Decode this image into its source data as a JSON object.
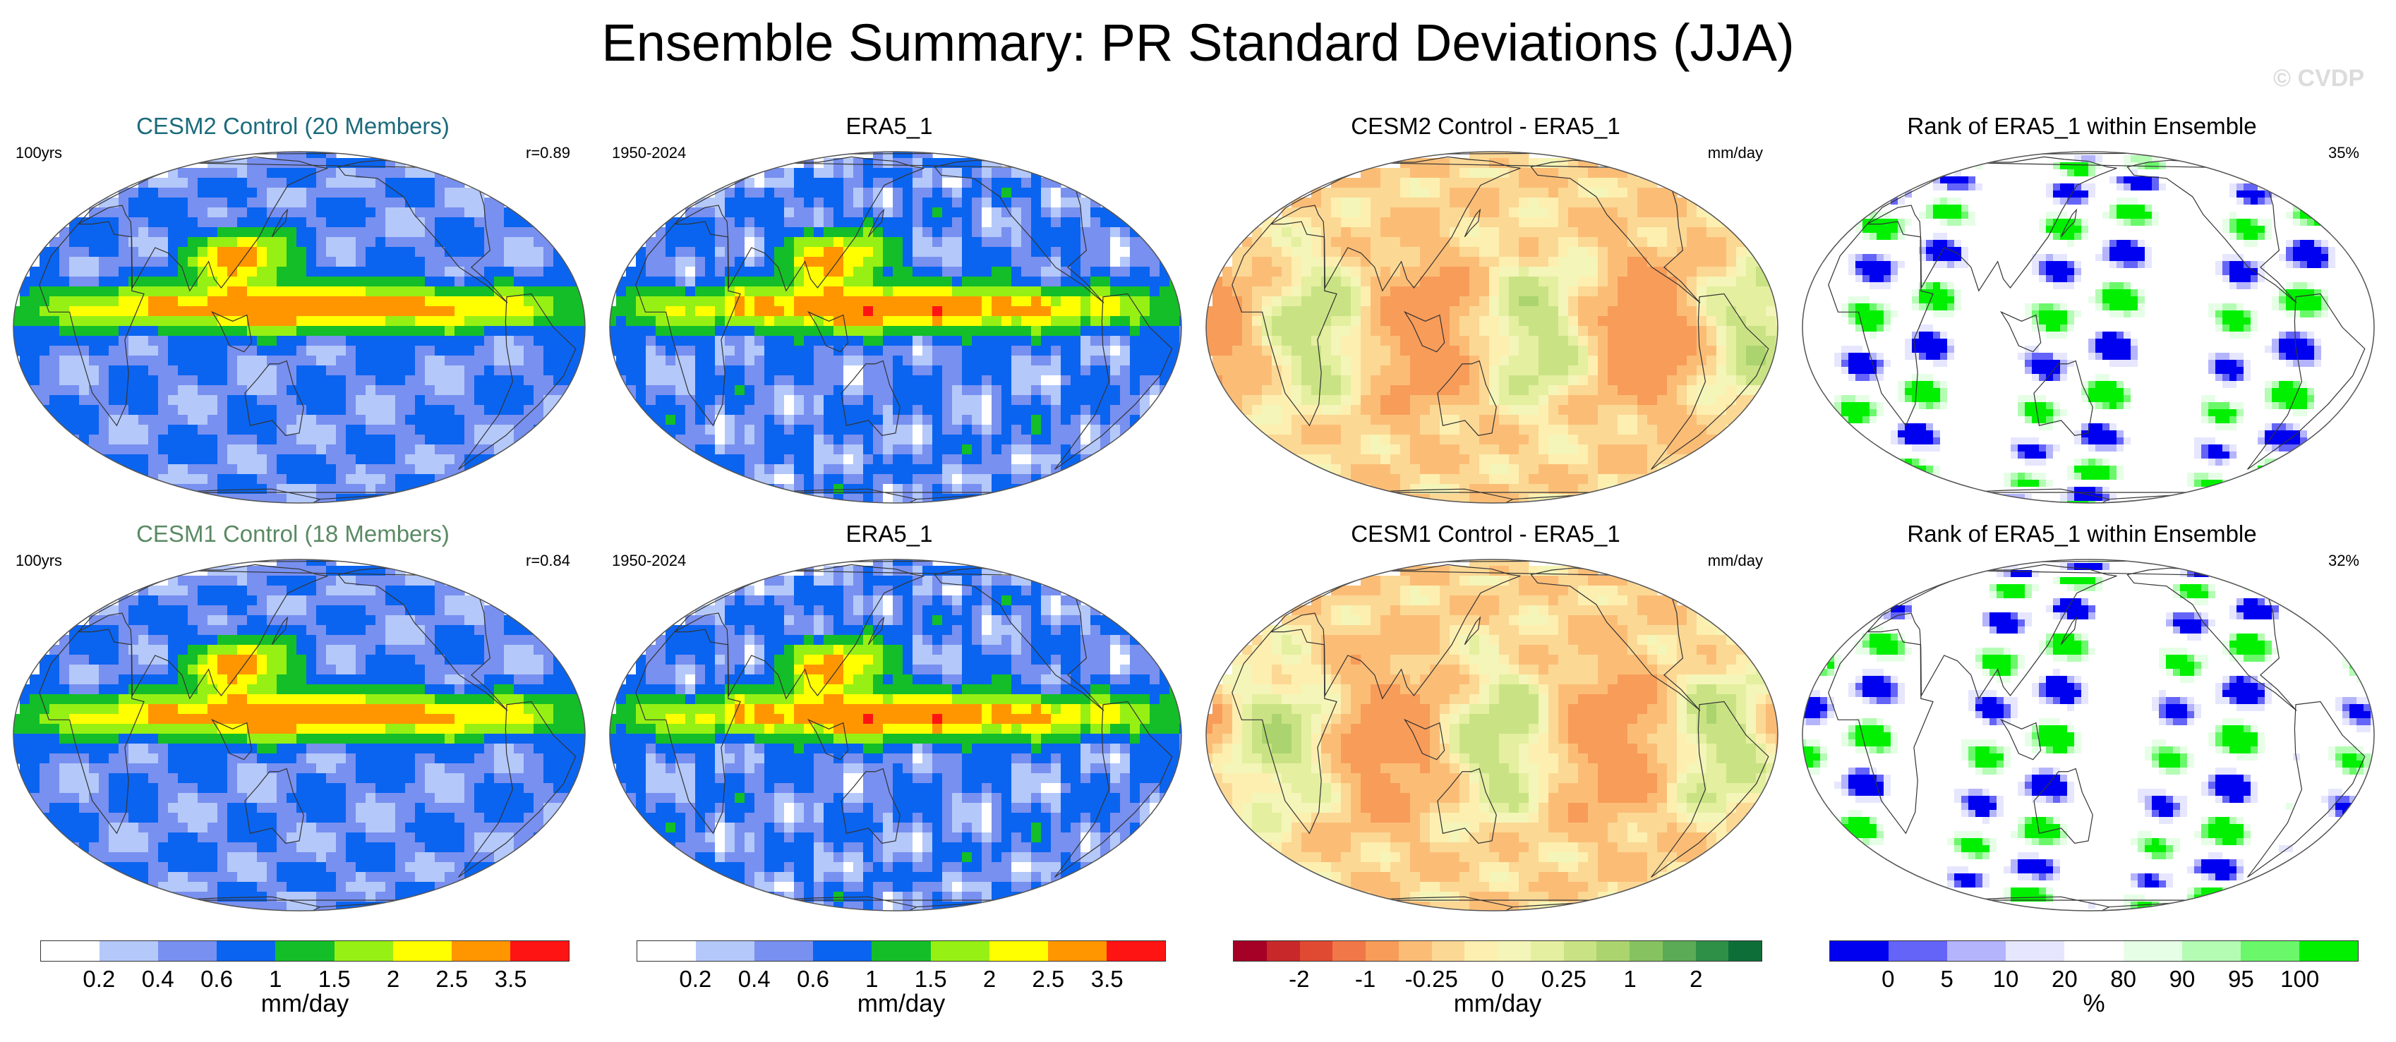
{
  "title": "Ensemble Summary: PR Standard Deviations (JJA)",
  "watermark": "© CVDP",
  "rows": [
    {
      "panels": [
        {
          "title": "CESM2 Control (20 Members)",
          "title_color": "#1b6b7c",
          "left_label": "100yrs",
          "right_label": "r=0.89",
          "kind": "std",
          "variant": "model"
        },
        {
          "title": "ERA5_1",
          "title_color": "#000000",
          "left_label": "1950-2024",
          "right_label": "",
          "kind": "std",
          "variant": "obs"
        },
        {
          "title": "CESM2 Control - ERA5_1",
          "title_color": "#000000",
          "left_label": "",
          "right_label": "mm/day",
          "kind": "diff",
          "variant": "a"
        },
        {
          "title": "Rank of ERA5_1 within Ensemble",
          "title_color": "#000000",
          "left_label": "",
          "right_label": "35%",
          "kind": "rank",
          "variant": "a"
        }
      ]
    },
    {
      "panels": [
        {
          "title": "CESM1 Control (18 Members)",
          "title_color": "#5a8a64",
          "left_label": "100yrs",
          "right_label": "r=0.84",
          "kind": "std",
          "variant": "model"
        },
        {
          "title": "ERA5_1",
          "title_color": "#000000",
          "left_label": "1950-2024",
          "right_label": "",
          "kind": "std",
          "variant": "obs"
        },
        {
          "title": "CESM1 Control - ERA5_1",
          "title_color": "#000000",
          "left_label": "",
          "right_label": "mm/day",
          "kind": "diff",
          "variant": "b"
        },
        {
          "title": "Rank of ERA5_1 within Ensemble",
          "title_color": "#000000",
          "left_label": "",
          "right_label": "32%",
          "kind": "rank",
          "variant": "b"
        }
      ]
    }
  ],
  "colorbars": [
    {
      "unit": "mm/day",
      "colors": [
        "#ffffff",
        "#b4c8fa",
        "#7890f0",
        "#0a64f0",
        "#14be28",
        "#96f014",
        "#ffff00",
        "#ff9600",
        "#ff1414"
      ],
      "ticks": [
        "0.2",
        "0.4",
        "0.6",
        "1",
        "1.5",
        "2",
        "2.5",
        "3.5"
      ]
    },
    {
      "unit": "mm/day",
      "colors": [
        "#ffffff",
        "#b4c8fa",
        "#7890f0",
        "#0a64f0",
        "#14be28",
        "#96f014",
        "#ffff00",
        "#ff9600",
        "#ff1414"
      ],
      "ticks": [
        "0.2",
        "0.4",
        "0.6",
        "1",
        "1.5",
        "2",
        "2.5",
        "3.5"
      ]
    },
    {
      "unit": "mm/day",
      "colors": [
        "#a50026",
        "#c8282a",
        "#e04a33",
        "#f07848",
        "#f89c5a",
        "#fbbd76",
        "#fcd895",
        "#fdefb0",
        "#f4f5b8",
        "#e4efa0",
        "#c9e384",
        "#abd46e",
        "#86c260",
        "#5bab56",
        "#2e8f47",
        "#0e6e38"
      ],
      "ticks": [
        "-2",
        "-1",
        "-0.25",
        "0",
        "0.25",
        "1",
        "2"
      ]
    },
    {
      "unit": "%",
      "colors": [
        "#0000f0",
        "#6464f8",
        "#b4b4fc",
        "#e6e6fe",
        "#ffffff",
        "#e6fee6",
        "#b4fcb4",
        "#6af86a",
        "#00f000"
      ],
      "ticks": [
        "0",
        "5",
        "10",
        "20",
        "80",
        "90",
        "95",
        "100"
      ]
    }
  ]
}
